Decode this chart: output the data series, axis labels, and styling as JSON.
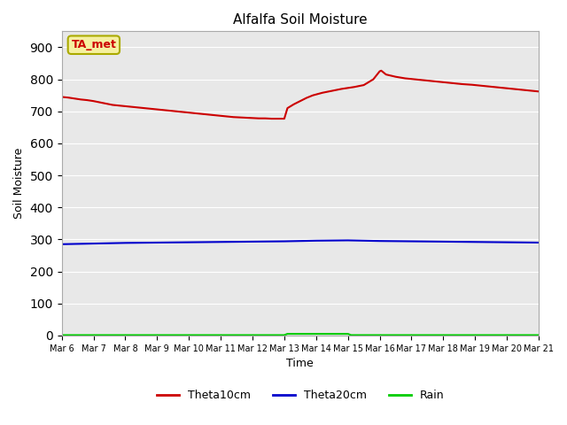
{
  "title": "Alfalfa Soil Moisture",
  "xlabel": "Time",
  "ylabel": "Soil Moisture",
  "ylim": [
    0,
    950
  ],
  "yticks": [
    0,
    100,
    200,
    300,
    400,
    500,
    600,
    700,
    800,
    900
  ],
  "bg_color": "#e8e8e8",
  "annotation_text": "TA_met",
  "annotation_color": "#cc0000",
  "annotation_bg": "#f5f0a0",
  "legend_entries": [
    "Theta10cm",
    "Theta20cm",
    "Rain"
  ],
  "legend_colors": [
    "#cc0000",
    "#0000cc",
    "#00cc00"
  ],
  "theta10_x": [
    6.0,
    6.2,
    6.4,
    6.6,
    6.8,
    7.0,
    7.2,
    7.4,
    7.6,
    7.8,
    8.0,
    8.2,
    8.4,
    8.6,
    8.8,
    9.0,
    9.2,
    9.4,
    9.6,
    9.8,
    10.0,
    10.2,
    10.4,
    10.6,
    10.8,
    11.0,
    11.2,
    11.4,
    11.6,
    11.8,
    12.0,
    12.2,
    12.4,
    12.6,
    12.8,
    13.0,
    13.1,
    13.3,
    13.5,
    13.7,
    13.9,
    14.2,
    14.5,
    14.8,
    15.0,
    15.2,
    15.5,
    15.8,
    16.0,
    16.05,
    16.2,
    16.5,
    16.8,
    17.0,
    17.2,
    17.5,
    17.8,
    18.0,
    18.3,
    18.6,
    18.9,
    19.2,
    19.5,
    19.8,
    20.0,
    20.3,
    20.6,
    20.9,
    21.0
  ],
  "theta10_y": [
    745,
    743,
    740,
    737,
    735,
    732,
    728,
    724,
    720,
    718,
    716,
    714,
    712,
    710,
    708,
    706,
    704,
    702,
    700,
    698,
    696,
    694,
    692,
    690,
    688,
    686,
    684,
    682,
    681,
    680,
    679,
    678,
    678,
    677,
    677,
    677,
    710,
    722,
    732,
    742,
    750,
    758,
    764,
    770,
    773,
    776,
    782,
    800,
    825,
    827,
    815,
    808,
    803,
    801,
    799,
    796,
    793,
    791,
    788,
    785,
    783,
    780,
    777,
    774,
    772,
    769,
    766,
    763,
    762
  ],
  "theta20_x": [
    6.0,
    7.0,
    8.0,
    9.0,
    10.0,
    11.0,
    12.0,
    13.0,
    14.0,
    15.0,
    16.0,
    17.0,
    18.0,
    19.0,
    20.0,
    21.0
  ],
  "theta20_y": [
    285,
    287,
    289,
    290,
    291,
    292,
    293,
    294,
    296,
    297,
    295,
    294,
    293,
    292,
    291,
    290
  ],
  "rain_x": [
    6.0,
    13.0,
    13.1,
    15.0,
    15.1,
    21.0
  ],
  "rain_y": [
    1,
    1,
    5,
    5,
    1,
    1
  ],
  "xtick_positions": [
    6,
    7,
    8,
    9,
    10,
    11,
    12,
    13,
    14,
    15,
    16,
    17,
    18,
    19,
    20,
    21
  ],
  "xtick_labels": [
    "Mar 6",
    "Mar 7",
    "Mar 8",
    "Mar 9",
    "Mar 10",
    "Mar 11",
    "Mar 12",
    "Mar 13",
    "Mar 14",
    "Mar 15",
    "Mar 16",
    "Mar 17",
    "Mar 18",
    "Mar 19",
    "Mar 20",
    "Mar 21"
  ]
}
